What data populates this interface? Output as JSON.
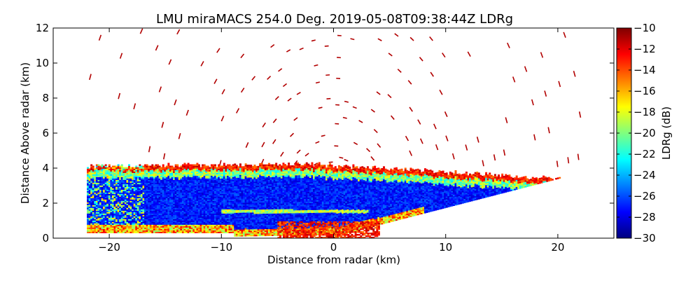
{
  "chart_data": {
    "type": "heatmap",
    "title": "LMU miraMACS 254.0 Deg. 2019-05-08T09:38:44Z  LDRg",
    "xlabel": "Distance from radar (km)",
    "ylabel": "Distance Above radar  (km)",
    "xlim": [
      -25,
      25
    ],
    "ylim": [
      0,
      12
    ],
    "xticks": [
      -20,
      -10,
      0,
      10,
      20
    ],
    "xtick_labels": [
      "−20",
      "−10",
      "0",
      "10",
      "20"
    ],
    "yticks": [
      0,
      2,
      4,
      6,
      8,
      10,
      12
    ],
    "ytick_labels": [
      "0",
      "2",
      "4",
      "6",
      "8",
      "10",
      "12"
    ],
    "colorbar": {
      "label": "LDRg (dB)",
      "range": [
        -30,
        -10
      ],
      "colormap": "jet",
      "ticks": [
        -30,
        -28,
        -26,
        -24,
        -22,
        -20,
        -18,
        -16,
        -14,
        -12,
        -10
      ],
      "tick_labels": [
        "−30",
        "−28",
        "−26",
        "−24",
        "−22",
        "−20",
        "−18",
        "−16",
        "−14",
        "−12",
        "−10"
      ]
    },
    "features": {
      "scan_type": "RHI",
      "cloud_layer_top_km": 4.3,
      "cloud_layer_x_extent_km": [
        -22,
        21
      ],
      "dominant_value_db": -27,
      "edge_value_db": -20,
      "sparse_returns_value_db": -11,
      "sparse_returns_max_height_km": 12
    }
  },
  "colors": {
    "background": "#ffffff",
    "axis": "#000000",
    "jet_stops": [
      "#00007f",
      "#0000ff",
      "#007fff",
      "#00ffff",
      "#7fff7f",
      "#ffff00",
      "#ff7f00",
      "#ff0000",
      "#7f0000"
    ]
  }
}
